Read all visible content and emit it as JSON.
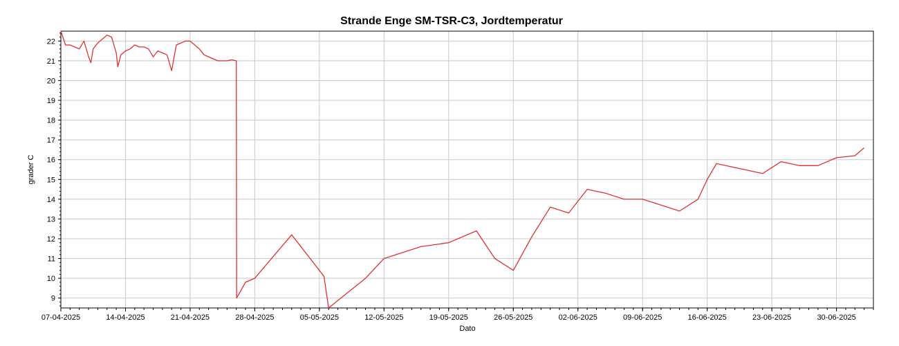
{
  "chart_data": {
    "type": "line",
    "title": "Strande Enge SM-TSR-C3, Jordtemperatur",
    "xlabel": "Dato",
    "ylabel": "grader C",
    "grid": true,
    "legend": "none",
    "ylim": [
      8.5,
      22.5
    ],
    "xlim": [
      "2025-04-07",
      "2025-07-04"
    ],
    "yticks": [
      9,
      10,
      11,
      12,
      13,
      14,
      15,
      16,
      17,
      18,
      19,
      20,
      21,
      22
    ],
    "xticks": [
      "07-04-2025",
      "14-04-2025",
      "21-04-2025",
      "28-04-2025",
      "05-05-2025",
      "12-05-2025",
      "19-05-2025",
      "26-05-2025",
      "02-06-2025",
      "09-06-2025",
      "16-06-2025",
      "23-06-2025",
      "30-06-2025"
    ],
    "series": [
      {
        "color": "#e03030",
        "points": [
          [
            "2025-04-07",
            22.5
          ],
          [
            "2025-04-07T12:00",
            21.8
          ],
          [
            "2025-04-08",
            21.8
          ],
          [
            "2025-04-08T12:00",
            21.7
          ],
          [
            "2025-04-09",
            21.6
          ],
          [
            "2025-04-09T12:00",
            22.0
          ],
          [
            "2025-04-10",
            21.2
          ],
          [
            "2025-04-10T06:00",
            20.9
          ],
          [
            "2025-04-10T12:00",
            21.6
          ],
          [
            "2025-04-11",
            21.9
          ],
          [
            "2025-04-11T12:00",
            22.1
          ],
          [
            "2025-04-12",
            22.3
          ],
          [
            "2025-04-12T12:00",
            22.2
          ],
          [
            "2025-04-13",
            21.4
          ],
          [
            "2025-04-13T04:00",
            20.7
          ],
          [
            "2025-04-13T12:00",
            21.3
          ],
          [
            "2025-04-14",
            21.5
          ],
          [
            "2025-04-14T12:00",
            21.6
          ],
          [
            "2025-04-15",
            21.8
          ],
          [
            "2025-04-15T12:00",
            21.7
          ],
          [
            "2025-04-16",
            21.7
          ],
          [
            "2025-04-16T12:00",
            21.6
          ],
          [
            "2025-04-17",
            21.2
          ],
          [
            "2025-04-17T12:00",
            21.5
          ],
          [
            "2025-04-18",
            21.4
          ],
          [
            "2025-04-18T12:00",
            21.3
          ],
          [
            "2025-04-19",
            20.5
          ],
          [
            "2025-04-19T12:00",
            21.8
          ],
          [
            "2025-04-20",
            21.9
          ],
          [
            "2025-04-20T12:00",
            22.0
          ],
          [
            "2025-04-21",
            22.0
          ],
          [
            "2025-04-21T12:00",
            21.8
          ],
          [
            "2025-04-22",
            21.6
          ],
          [
            "2025-04-22T12:00",
            21.3
          ],
          [
            "2025-04-23",
            21.2
          ],
          [
            "2025-04-23T12:00",
            21.1
          ],
          [
            "2025-04-24",
            21.0
          ],
          [
            "2025-04-24T12:00",
            21.0
          ],
          [
            "2025-04-25",
            21.0
          ],
          [
            "2025-04-25T12:00",
            21.05
          ],
          [
            "2025-04-26",
            21.0
          ],
          [
            "2025-04-26T01:00",
            9.0
          ],
          [
            "2025-04-27",
            9.8
          ],
          [
            "2025-04-28",
            10.0
          ],
          [
            "2025-05-02",
            12.2
          ],
          [
            "2025-05-05T12:00",
            10.1
          ],
          [
            "2025-05-06",
            8.5
          ],
          [
            "2025-05-10",
            10.0
          ],
          [
            "2025-05-12",
            11.0
          ],
          [
            "2025-05-16",
            11.6
          ],
          [
            "2025-05-19",
            11.8
          ],
          [
            "2025-05-22",
            12.4
          ],
          [
            "2025-05-24",
            11.0
          ],
          [
            "2025-05-26",
            10.4
          ],
          [
            "2025-05-28",
            12.1
          ],
          [
            "2025-05-30",
            13.6
          ],
          [
            "2025-06-01",
            13.3
          ],
          [
            "2025-06-03",
            14.5
          ],
          [
            "2025-06-05",
            14.3
          ],
          [
            "2025-06-07",
            14.0
          ],
          [
            "2025-06-09",
            14.0
          ],
          [
            "2025-06-11",
            13.7
          ],
          [
            "2025-06-13",
            13.4
          ],
          [
            "2025-06-15",
            14.0
          ],
          [
            "2025-06-16",
            15.0
          ],
          [
            "2025-06-17",
            15.8
          ],
          [
            "2025-06-20",
            15.5
          ],
          [
            "2025-06-22",
            15.3
          ],
          [
            "2025-06-24",
            15.9
          ],
          [
            "2025-06-26",
            15.7
          ],
          [
            "2025-06-28",
            15.7
          ],
          [
            "2025-06-30",
            16.1
          ],
          [
            "2025-07-02",
            16.2
          ],
          [
            "2025-07-03",
            16.6
          ]
        ]
      }
    ]
  }
}
